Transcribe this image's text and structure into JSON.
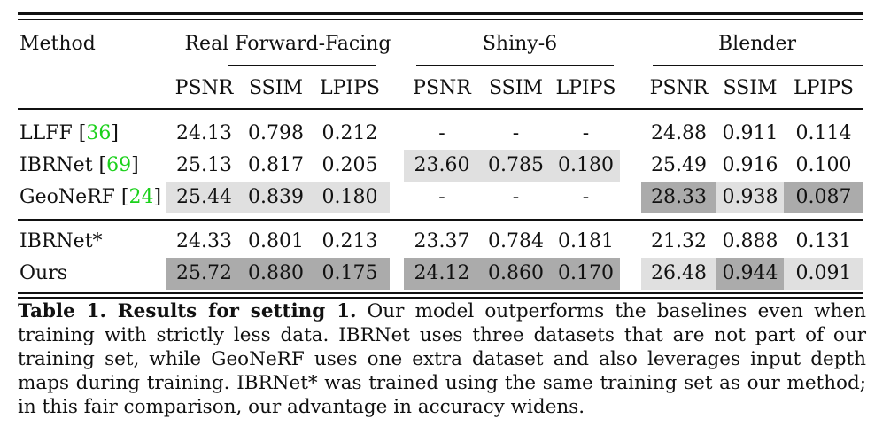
{
  "table": {
    "method_header": "Method",
    "groups": [
      "Real Forward-Facing",
      "Shiny-6",
      "Blender"
    ],
    "metrics": [
      "PSNR",
      "SSIM",
      "LPIPS"
    ],
    "rows": [
      {
        "method": "LLFF",
        "cite": "36",
        "values": [
          "24.13",
          "0.798",
          "0.212",
          "-",
          "-",
          "-",
          "24.88",
          "0.911",
          "0.114"
        ],
        "shade": [
          "",
          "",
          "",
          "",
          "",
          "",
          "",
          "",
          ""
        ]
      },
      {
        "method": "IBRNet",
        "cite": "69",
        "values": [
          "25.13",
          "0.817",
          "0.205",
          "23.60",
          "0.785",
          "0.180",
          "25.49",
          "0.916",
          "0.100"
        ],
        "shade": [
          "",
          "",
          "",
          "light",
          "light",
          "light",
          "",
          "",
          ""
        ]
      },
      {
        "method": "GeoNeRF",
        "cite": "24",
        "values": [
          "25.44",
          "0.839",
          "0.180",
          "-",
          "-",
          "-",
          "28.33",
          "0.938",
          "0.087"
        ],
        "shade": [
          "light",
          "light",
          "light",
          "",
          "",
          "",
          "dark",
          "light",
          "dark"
        ]
      },
      {
        "method": "IBRNet*",
        "cite": "",
        "values": [
          "24.33",
          "0.801",
          "0.213",
          "23.37",
          "0.784",
          "0.181",
          "21.32",
          "0.888",
          "0.131"
        ],
        "shade": [
          "",
          "",
          "",
          "",
          "",
          "",
          "",
          "",
          ""
        ]
      },
      {
        "method": "Ours",
        "cite": "",
        "values": [
          "25.72",
          "0.880",
          "0.175",
          "24.12",
          "0.860",
          "0.170",
          "26.48",
          "0.944",
          "0.091"
        ],
        "shade": [
          "dark",
          "dark",
          "dark",
          "dark",
          "dark",
          "dark",
          "light",
          "dark",
          "light"
        ]
      }
    ]
  },
  "caption": {
    "label": "Table 1. Results for setting 1.",
    "text": " Our model outperforms the baselines even when training with strictly less data. IBRNet uses three datasets that are not part of our training set, while GeoNeRF uses one extra dataset and also leverages input depth maps during training. IBRNet* was trained using the same training set as our method; in this fair comparison, our advantage in accuracy widens."
  }
}
